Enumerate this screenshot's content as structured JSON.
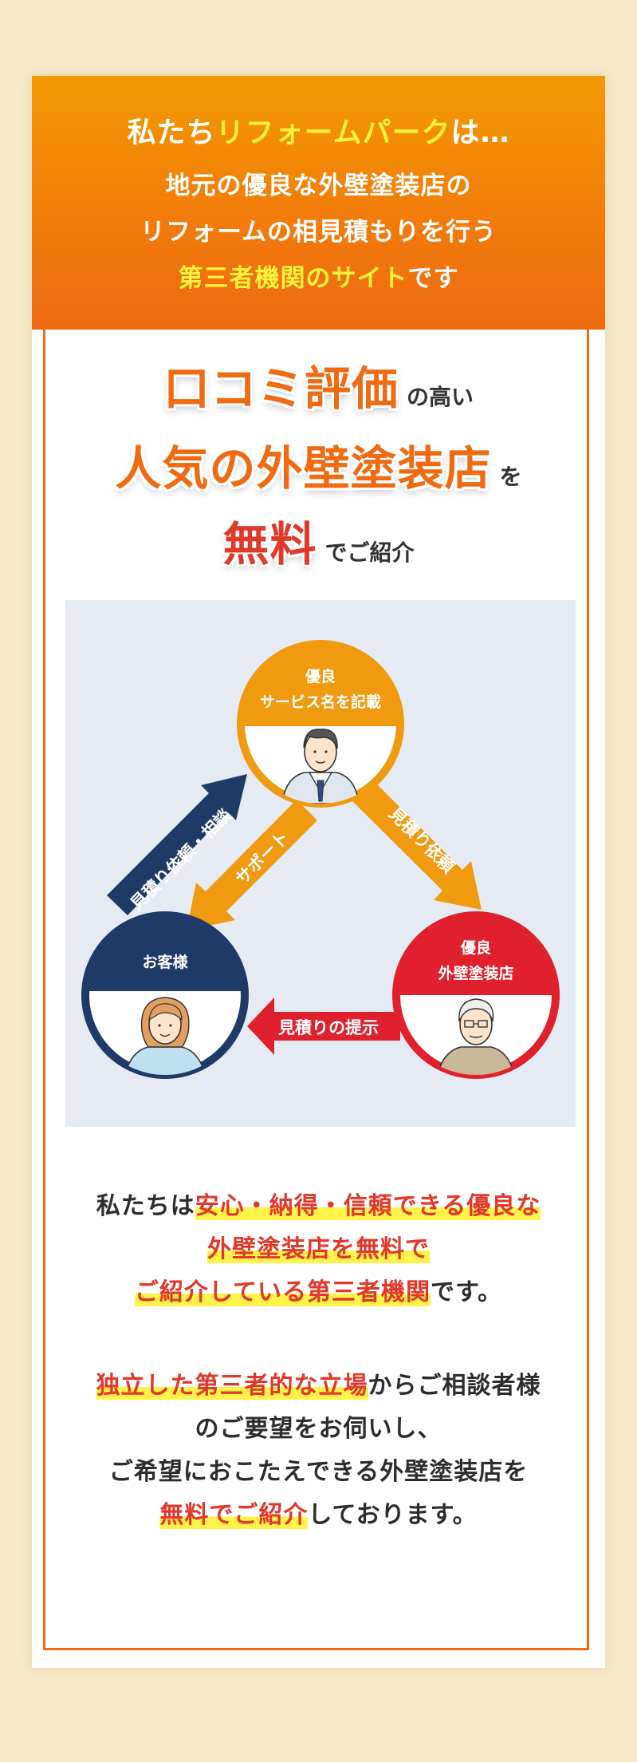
{
  "header": {
    "line1_prefix": "私たち",
    "line1_highlight": "リフォームパーク",
    "line1_suffix": "は…",
    "line2": "地元の優良な外壁塗装店の",
    "line3": "リフォームの相見積もりを行う",
    "line4_highlight": "第三者機関のサイト",
    "line4_suffix": "です"
  },
  "catch": {
    "line1_big": "口コミ評価",
    "line1_small": "の高い",
    "line2_big": "人気の外壁塗装店",
    "line2_small": "を",
    "line3_big": "無料",
    "line3_small": "でご紹介"
  },
  "diagram": {
    "top_node": {
      "line1": "優良",
      "line2": "サービス名を記載",
      "color": "#f09a10"
    },
    "left_node": {
      "label": "お客様",
      "color": "#1f3a66"
    },
    "right_node": {
      "line1": "優良",
      "line2": "外壁塗装店",
      "color": "#e0212d"
    },
    "arrow_left_up": "見積り依頼・相談",
    "arrow_left_down": "サポート",
    "arrow_right_down": "見積り依頼",
    "arrow_bottom": "見積りの提示",
    "background": "#e6ebf3"
  },
  "paragraph1": {
    "l1_prefix": "私たちは",
    "l1_highlight": "安心・納得・信頼できる優良な",
    "l2_highlight": "外壁塗装店を無料で",
    "l3_highlight": "ご紹介している第三者機関",
    "l3_suffix": "です。"
  },
  "paragraph2": {
    "l1_highlight": "独立した第三者的な立場",
    "l1_suffix": "からご相談者様",
    "l2": "のご要望をお伺いし、",
    "l3": "ご希望におこたえできる外壁塗装店を",
    "l4_highlight": "無料でご紹介",
    "l4_suffix": "しております。"
  },
  "colors": {
    "accent_orange": "#ee6a10",
    "highlight_yellow": "#fff34a",
    "text_red": "#e2372a",
    "navy": "#1f3a66"
  }
}
